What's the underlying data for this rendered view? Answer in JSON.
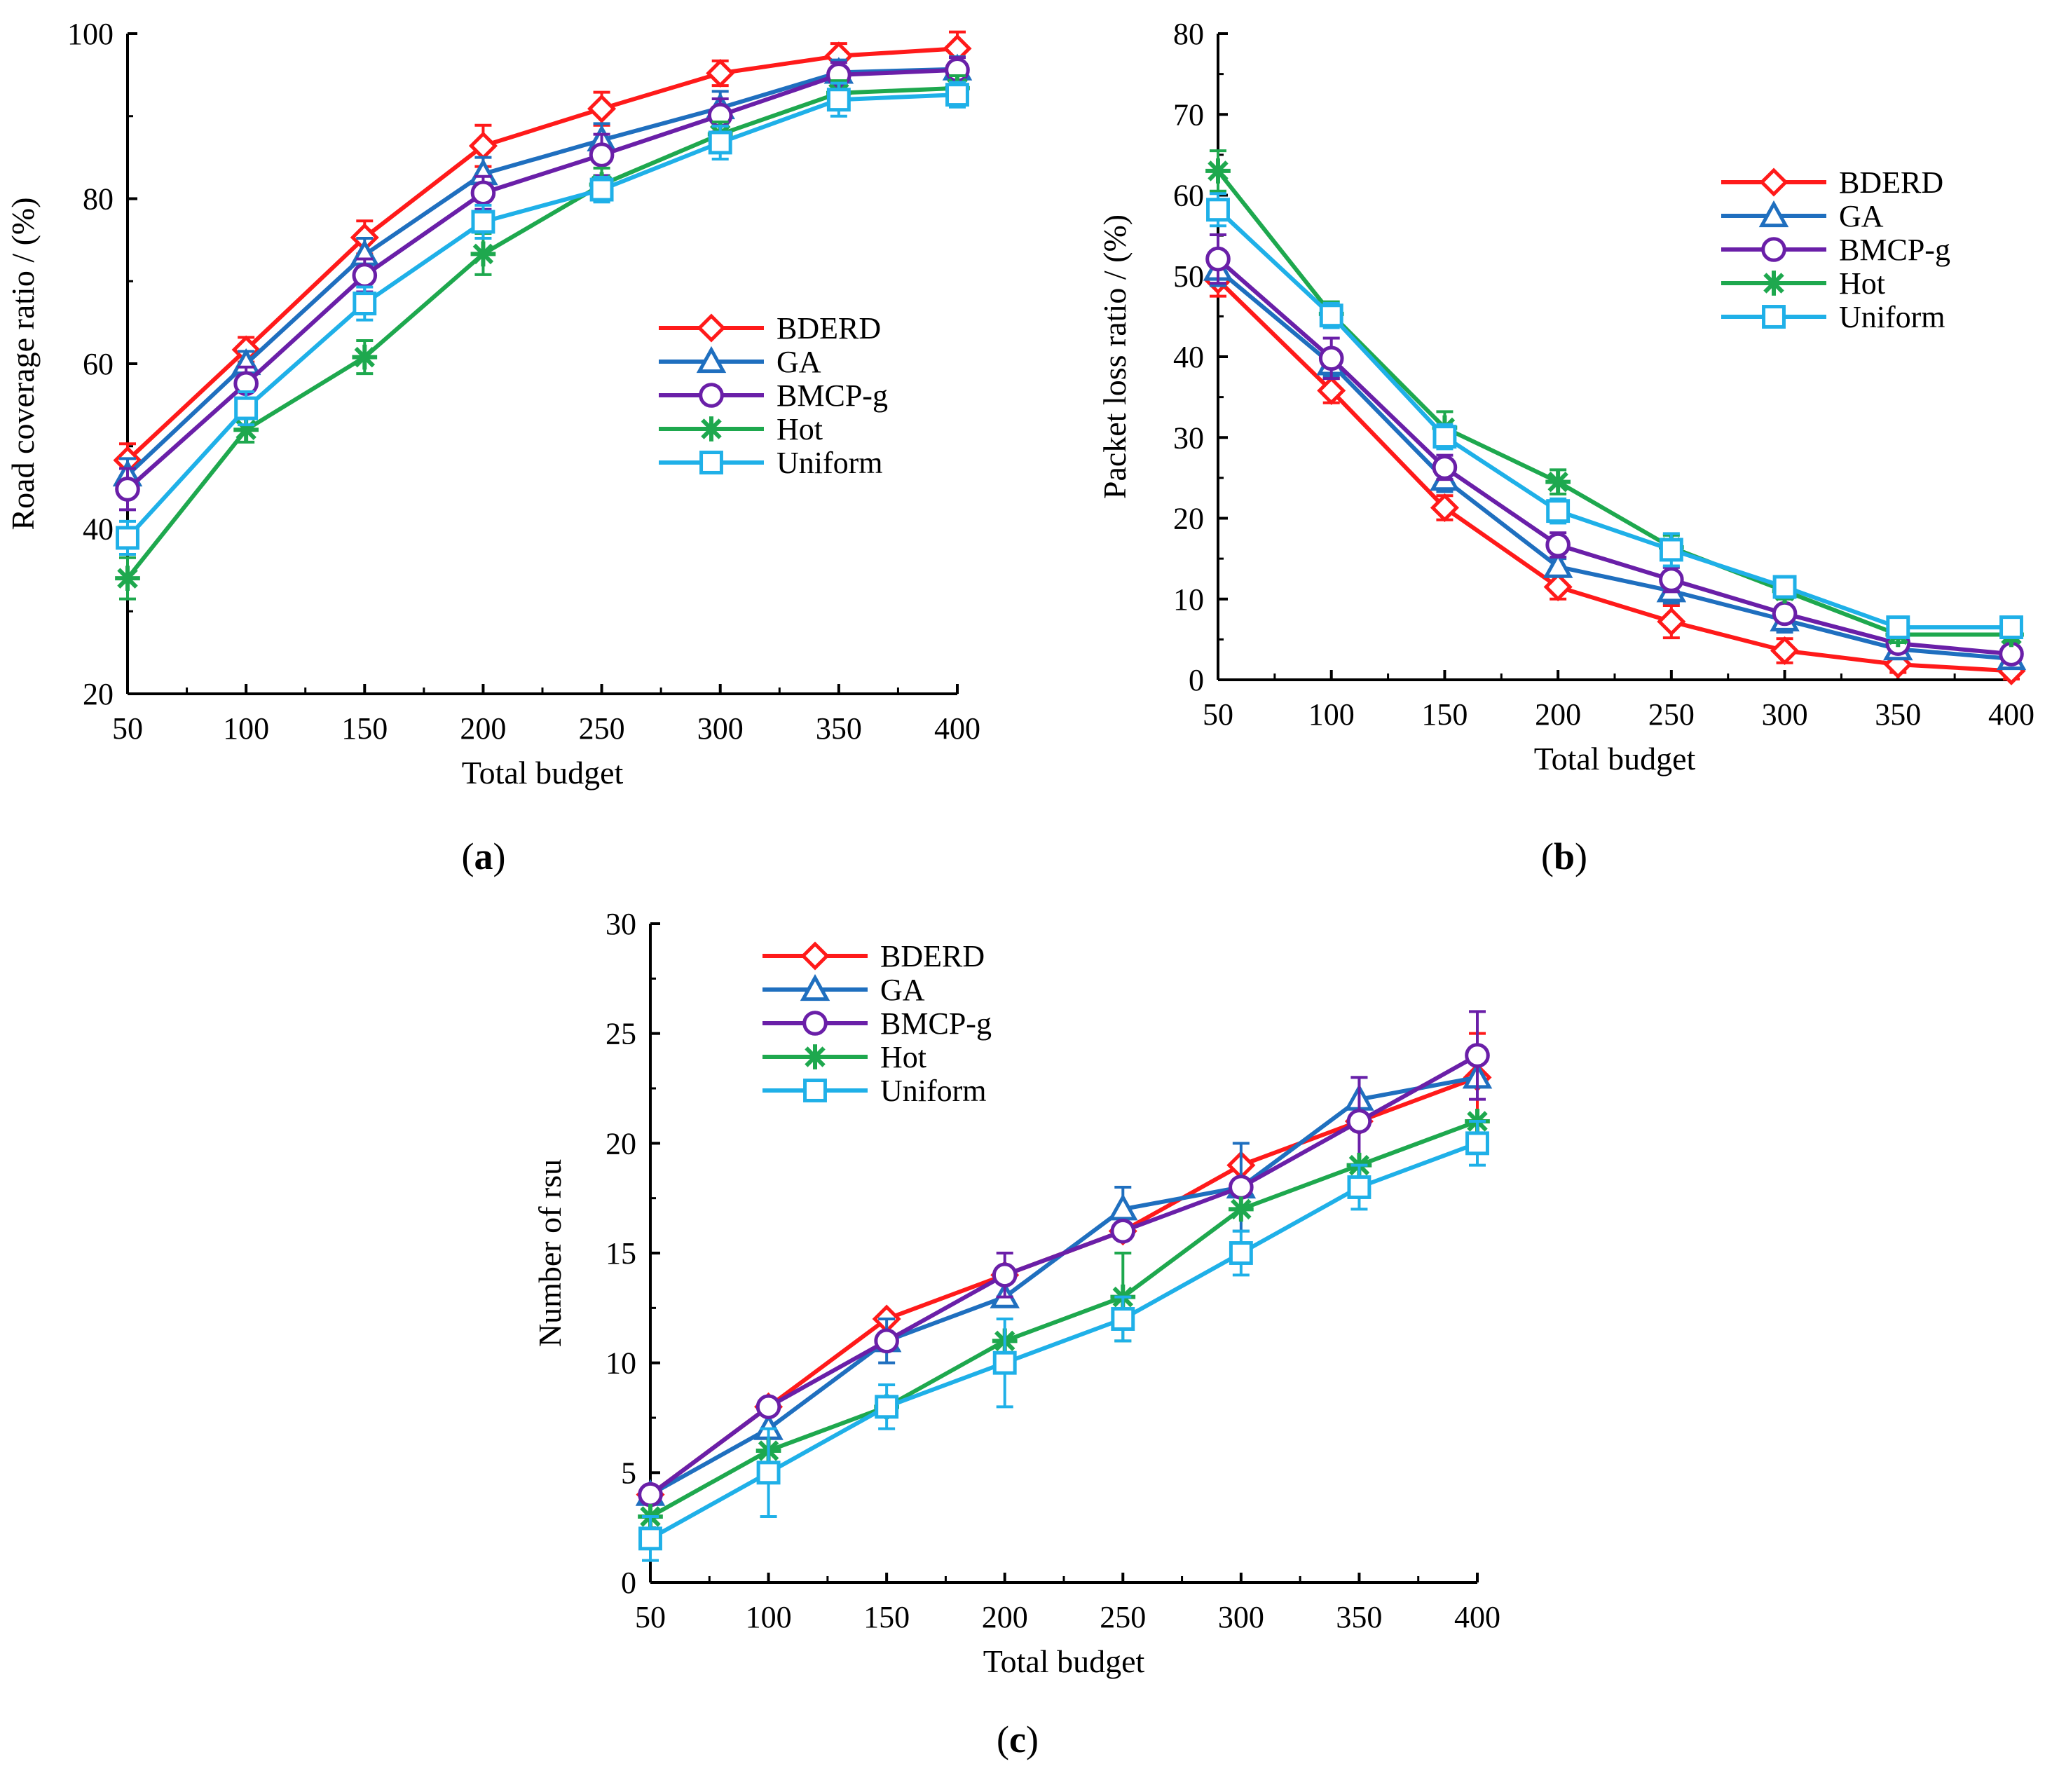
{
  "figure": {
    "panels": [
      "a",
      "b",
      "c"
    ]
  },
  "chart_data": [
    {
      "id": "a",
      "type": "line",
      "panel_label": "a",
      "title": "",
      "xlabel": "Total budget",
      "ylabel": "Road coverage ratio / (%)",
      "x": [
        50,
        100,
        150,
        200,
        250,
        300,
        350,
        400
      ],
      "xlim": [
        50,
        400
      ],
      "ylim": [
        20,
        100
      ],
      "xticks": [
        50,
        100,
        150,
        200,
        250,
        300,
        350,
        400
      ],
      "yticks": [
        20,
        40,
        60,
        80,
        100
      ],
      "grid": false,
      "legend_position": "center-right",
      "series": [
        {
          "name": "BDERD",
          "color": "#ff1a1a",
          "marker": "diamond",
          "values": [
            48.3,
            61.7,
            75.3,
            86.4,
            90.9,
            95.2,
            97.3,
            98.2
          ],
          "errors": [
            2,
            1.5,
            2,
            2.5,
            2,
            1.5,
            1.5,
            2
          ]
        },
        {
          "name": "GA",
          "color": "#1f6fbf",
          "marker": "triangle",
          "values": [
            46.5,
            60.0,
            73.2,
            83.0,
            87.1,
            91.0,
            95.3,
            95.7
          ],
          "errors": [
            2,
            1.5,
            2,
            2,
            2,
            2,
            1.5,
            1.5
          ]
        },
        {
          "name": "BMCP-g",
          "color": "#6a1fa8",
          "marker": "circle",
          "values": [
            44.8,
            57.6,
            70.7,
            80.7,
            85.3,
            90.1,
            95.0,
            95.6
          ],
          "errors": [
            2.5,
            2,
            2,
            2,
            2.5,
            2,
            1.5,
            1.5
          ]
        },
        {
          "name": "Hot",
          "color": "#1ea84e",
          "marker": "asterisk",
          "values": [
            34.0,
            52.0,
            60.8,
            73.3,
            81.7,
            87.8,
            92.8,
            93.4
          ],
          "errors": [
            2.5,
            1.5,
            2,
            2.5,
            2,
            1.5,
            1.5,
            1.5
          ]
        },
        {
          "name": "Uniform",
          "color": "#1fb0e8",
          "marker": "square",
          "values": [
            38.9,
            54.6,
            67.3,
            77.2,
            81.1,
            86.8,
            92.0,
            92.6
          ],
          "errors": [
            2,
            2,
            2,
            2,
            1.5,
            2,
            2,
            1.5
          ]
        }
      ]
    },
    {
      "id": "b",
      "type": "line",
      "panel_label": "b",
      "title": "",
      "xlabel": "Total budget",
      "ylabel": "Packet loss ratio / (%)",
      "x": [
        50,
        100,
        150,
        200,
        250,
        300,
        350,
        400
      ],
      "xlim": [
        50,
        400
      ],
      "ylim": [
        0,
        80
      ],
      "xticks": [
        50,
        100,
        150,
        200,
        250,
        300,
        350,
        400
      ],
      "yticks": [
        0,
        10,
        20,
        30,
        40,
        50,
        60,
        70,
        80
      ],
      "grid": false,
      "legend_position": "top-right",
      "series": [
        {
          "name": "BDERD",
          "color": "#ff1a1a",
          "marker": "diamond",
          "values": [
            49.5,
            35.8,
            21.3,
            11.5,
            7.2,
            3.6,
            1.9,
            1.1
          ],
          "errors": [
            2,
            1.5,
            1.5,
            1.5,
            2,
            1.5,
            1,
            1
          ]
        },
        {
          "name": "GA",
          "color": "#1f6fbf",
          "marker": "triangle",
          "values": [
            50.8,
            39.1,
            24.8,
            14.0,
            11.0,
            7.4,
            3.8,
            2.6
          ],
          "errors": [
            2,
            1.5,
            1.5,
            1,
            1.5,
            1.5,
            1,
            0.8
          ]
        },
        {
          "name": "BMCP-g",
          "color": "#6a1fa8",
          "marker": "circle",
          "values": [
            52.1,
            39.8,
            26.3,
            16.7,
            12.4,
            8.2,
            4.5,
            3.2
          ],
          "errors": [
            3,
            2.5,
            1.5,
            1.5,
            1.5,
            1,
            1,
            0.8
          ]
        },
        {
          "name": "Hot",
          "color": "#1ea84e",
          "marker": "asterisk",
          "values": [
            63.0,
            45.3,
            31.2,
            24.5,
            16.4,
            11.0,
            5.6,
            5.6
          ],
          "errors": [
            2.5,
            1.5,
            2,
            1.5,
            1.5,
            1,
            1,
            0.8
          ]
        },
        {
          "name": "Uniform",
          "color": "#1fb0e8",
          "marker": "square",
          "values": [
            58.2,
            45.1,
            30.1,
            20.9,
            16.1,
            11.5,
            6.5,
            6.5
          ],
          "errors": [
            2,
            1.5,
            1.5,
            1.5,
            2,
            1,
            1,
            0.8
          ]
        }
      ]
    },
    {
      "id": "c",
      "type": "line",
      "panel_label": "c",
      "title": "",
      "xlabel": "Total budget",
      "ylabel": "Number of rsu",
      "x": [
        50,
        100,
        150,
        200,
        250,
        300,
        350,
        400
      ],
      "xlim": [
        50,
        400
      ],
      "ylim": [
        0,
        30
      ],
      "xticks": [
        50,
        100,
        150,
        200,
        250,
        300,
        350,
        400
      ],
      "yticks": [
        0,
        5,
        10,
        15,
        20,
        25,
        30
      ],
      "grid": false,
      "legend_position": "top-left",
      "series": [
        {
          "name": "BDERD",
          "color": "#ff1a1a",
          "marker": "diamond",
          "values": [
            4,
            8,
            12,
            14,
            16,
            19,
            21,
            23
          ],
          "errors": [
            0,
            0,
            0,
            0,
            0,
            0,
            0,
            2
          ]
        },
        {
          "name": "GA",
          "color": "#1f6fbf",
          "marker": "triangle",
          "values": [
            4,
            7,
            11,
            13,
            17,
            18,
            22,
            23
          ],
          "errors": [
            0,
            0,
            1,
            0,
            1,
            2,
            1,
            0
          ]
        },
        {
          "name": "BMCP-g",
          "color": "#6a1fa8",
          "marker": "circle",
          "values": [
            4,
            8,
            11,
            14,
            16,
            18,
            21,
            24
          ],
          "errors": [
            0,
            0,
            0,
            1,
            0,
            0,
            2,
            2
          ]
        },
        {
          "name": "Hot",
          "color": "#1ea84e",
          "marker": "asterisk",
          "values": [
            3,
            6,
            8,
            11,
            13,
            17,
            19,
            21
          ],
          "errors": [
            0,
            0,
            0,
            0,
            2,
            0,
            0,
            0
          ]
        },
        {
          "name": "Uniform",
          "color": "#1fb0e8",
          "marker": "square",
          "values": [
            2,
            5,
            8,
            10,
            12,
            15,
            18,
            20
          ],
          "errors": [
            1,
            2,
            1,
            2,
            1,
            1,
            1,
            1
          ]
        }
      ]
    }
  ]
}
